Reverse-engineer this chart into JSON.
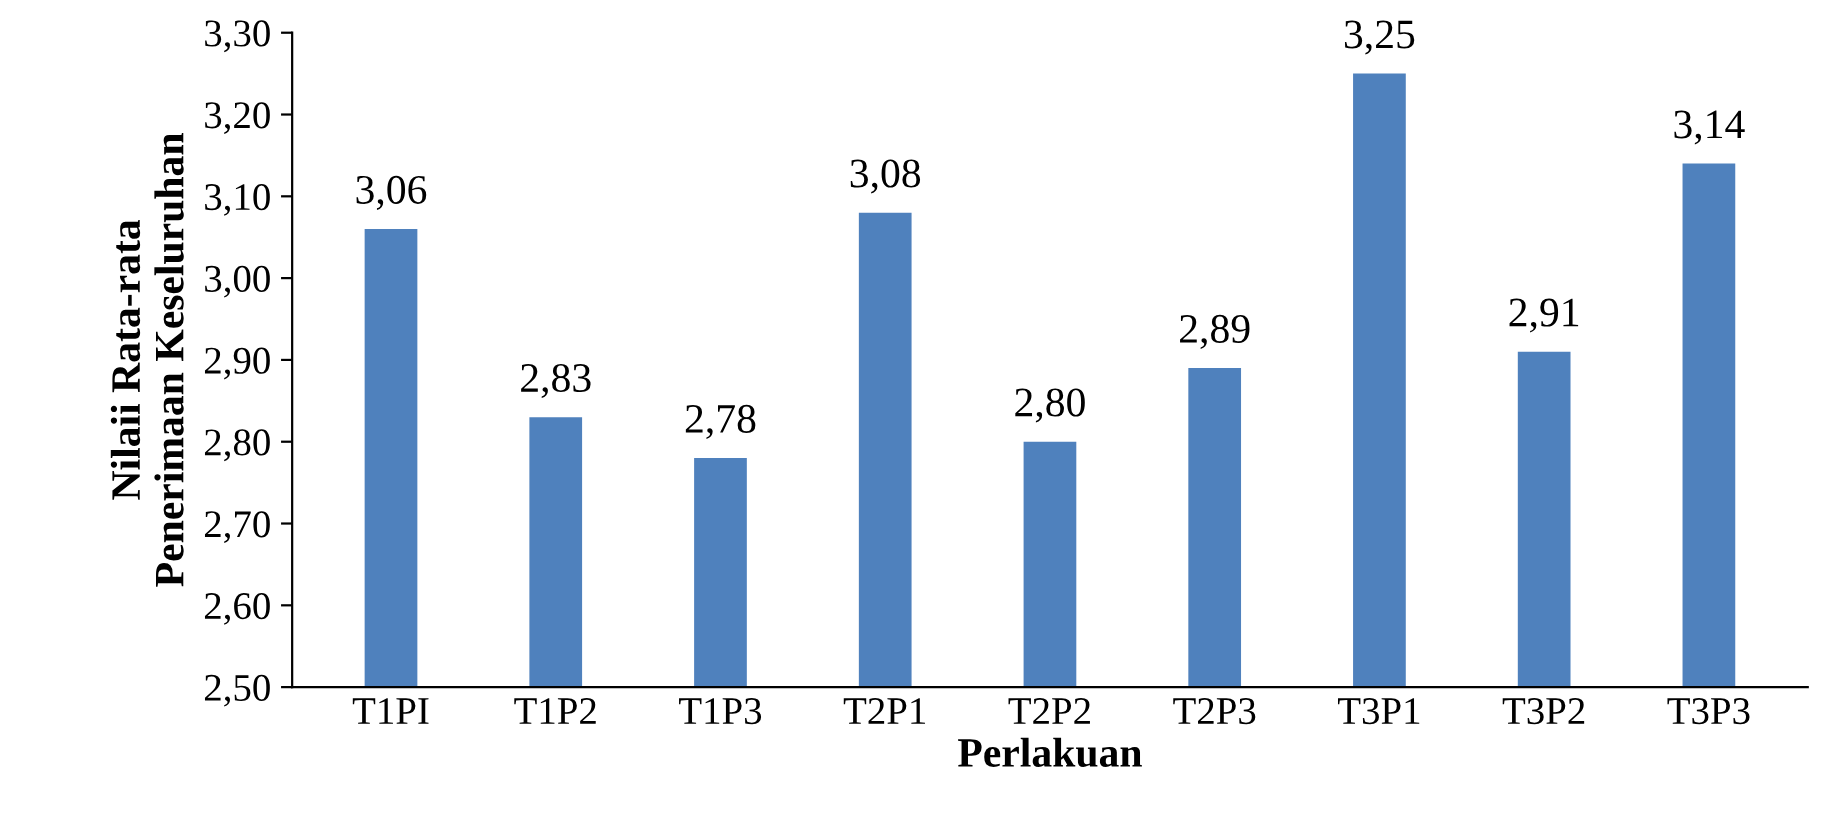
{
  "chart_data": {
    "type": "bar",
    "xlabel": "Perlakuan",
    "ylabel": "Nilaii Rata-rata\nPenerimaan Keseluruhan",
    "categories": [
      "T1PI",
      "T1P2",
      "T1P3",
      "T2P1",
      "T2P2",
      "T2P3",
      "T3P1",
      "T3P2",
      "T3P3"
    ],
    "values": [
      3.06,
      2.83,
      2.78,
      3.08,
      2.8,
      2.89,
      3.25,
      2.91,
      3.14
    ],
    "value_labels": [
      "3,06",
      "2,83",
      "2,78",
      "3,08",
      "2,80",
      "2,89",
      "3,25",
      "2,91",
      "3,14"
    ],
    "color": "#4f81bd",
    "ylim": [
      2.5,
      3.3
    ],
    "yticks": [
      {
        "value": 2.5,
        "label": "2,50"
      },
      {
        "value": 2.6,
        "label": "2,60"
      },
      {
        "value": 2.7,
        "label": "2,70"
      },
      {
        "value": 2.8,
        "label": "2,80"
      },
      {
        "value": 2.9,
        "label": "2,90"
      },
      {
        "value": 3.0,
        "label": "3,00"
      },
      {
        "value": 3.1,
        "label": "3,10"
      },
      {
        "value": 3.2,
        "label": "3,20"
      },
      {
        "value": 3.3,
        "label": "3,30"
      }
    ],
    "grid": false,
    "legend": false
  }
}
